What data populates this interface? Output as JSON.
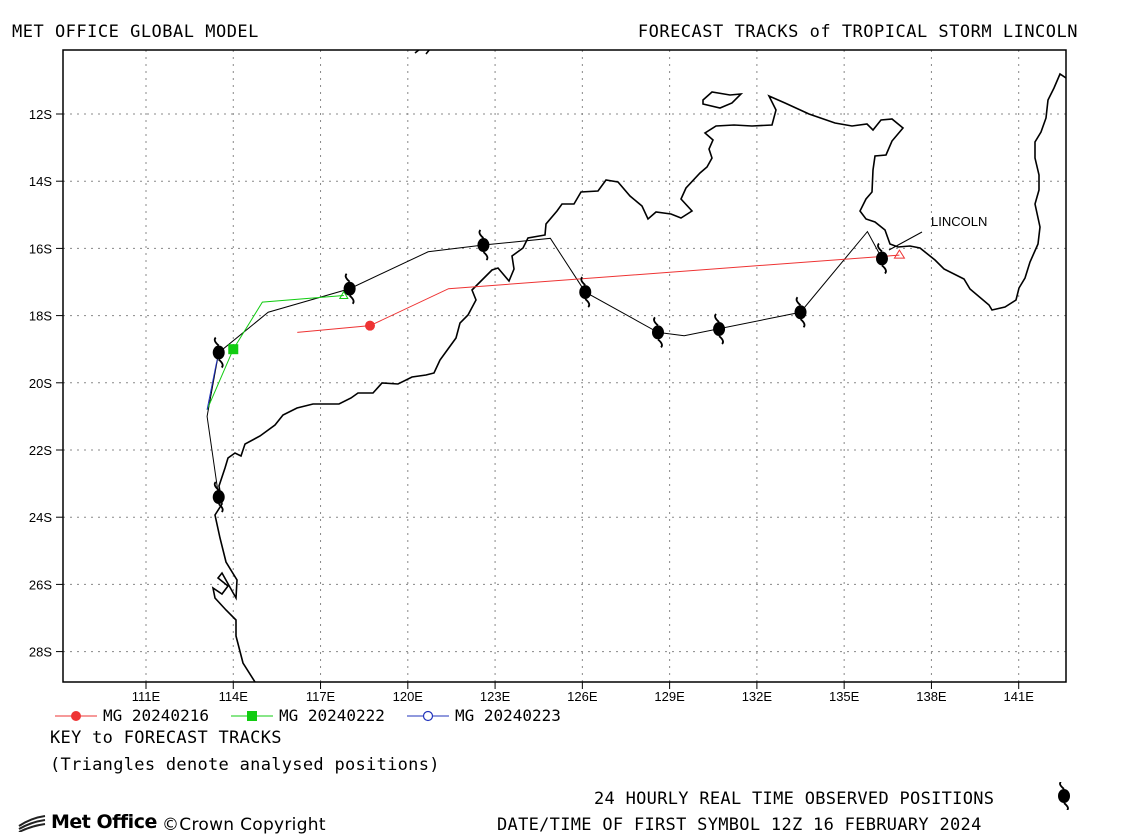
{
  "header": {
    "left_title": "MET OFFICE GLOBAL MODEL",
    "right_title": "FORECAST TRACKS of TROPICAL STORM LINCOLN"
  },
  "map": {
    "storm_label": "LINCOLN",
    "lat_labels": [
      "12S",
      "14S",
      "16S",
      "18S",
      "20S",
      "22S",
      "24S",
      "26S",
      "28S"
    ],
    "lon_labels": [
      "111E",
      "114E",
      "117E",
      "120E",
      "123E",
      "126E",
      "129E",
      "132E",
      "135E",
      "138E",
      "141E"
    ],
    "colors": {
      "observed": "#000000",
      "mg_20240216": "#ee3333",
      "mg_20240222": "#11cc11",
      "mg_20240223": "#2233bb"
    }
  },
  "key": {
    "items": [
      {
        "label": "MG 20240216",
        "color": "#ee3333",
        "marker": "filled-circle"
      },
      {
        "label": "MG 20240222",
        "color": "#11cc11",
        "marker": "filled-square"
      },
      {
        "label": "MG 20240223",
        "color": "#2233bb",
        "marker": "open-circle"
      }
    ],
    "title": "KEY to FORECAST TRACKS",
    "note": "(Triangles denote analysed positions)"
  },
  "footer": {
    "observed_label": "24 HOURLY REAL TIME OBSERVED POSITIONS",
    "first_symbol": "DATE/TIME OF FIRST SYMBOL 12Z 16 FEBRUARY 2024",
    "logo_text": "Met Office",
    "copyright": "©Crown Copyright"
  },
  "tracks": {
    "observed": [
      {
        "lat": -16.3,
        "lon": 136.3
      },
      {
        "lat": -17.9,
        "lon": 133.5
      },
      {
        "lat": -18.4,
        "lon": 130.7
      },
      {
        "lat": -18.5,
        "lon": 128.6
      },
      {
        "lat": -17.3,
        "lon": 126.1
      },
      {
        "lat": -15.9,
        "lon": 122.6
      },
      {
        "lat": -17.2,
        "lon": 118.0
      },
      {
        "lat": -19.1,
        "lon": 113.5
      },
      {
        "lat": -23.4,
        "lon": 113.5
      }
    ],
    "observed_path": [
      {
        "lat": -16.3,
        "lon": 136.3
      },
      {
        "lat": -15.5,
        "lon": 135.8
      },
      {
        "lat": -17.9,
        "lon": 133.5
      },
      {
        "lat": -18.6,
        "lon": 129.5
      },
      {
        "lat": -18.5,
        "lon": 128.6
      },
      {
        "lat": -17.3,
        "lon": 126.1
      },
      {
        "lat": -15.7,
        "lon": 124.9
      },
      {
        "lat": -15.9,
        "lon": 122.6
      },
      {
        "lat": -16.1,
        "lon": 120.7
      },
      {
        "lat": -17.2,
        "lon": 118.0
      },
      {
        "lat": -17.9,
        "lon": 115.2
      },
      {
        "lat": -19.1,
        "lon": 113.5
      },
      {
        "lat": -21.0,
        "lon": 113.1
      },
      {
        "lat": -23.4,
        "lon": 113.5
      }
    ],
    "mg_20240216": [
      {
        "lat": -16.2,
        "lon": 136.9
      },
      {
        "lat": -17.2,
        "lon": 121.4
      },
      {
        "lat": -18.3,
        "lon": 118.7
      },
      {
        "lat": -18.5,
        "lon": 116.2
      }
    ],
    "mg_20240222": [
      {
        "lat": -17.4,
        "lon": 117.8
      },
      {
        "lat": -17.6,
        "lon": 115.0
      },
      {
        "lat": -19.0,
        "lon": 114.0
      },
      {
        "lat": -20.8,
        "lon": 113.1
      }
    ],
    "mg_20240223": [
      {
        "lat": -19.1,
        "lon": 113.5
      },
      {
        "lat": -19.5,
        "lon": 113.4
      },
      {
        "lat": -20.8,
        "lon": 113.1
      }
    ]
  }
}
